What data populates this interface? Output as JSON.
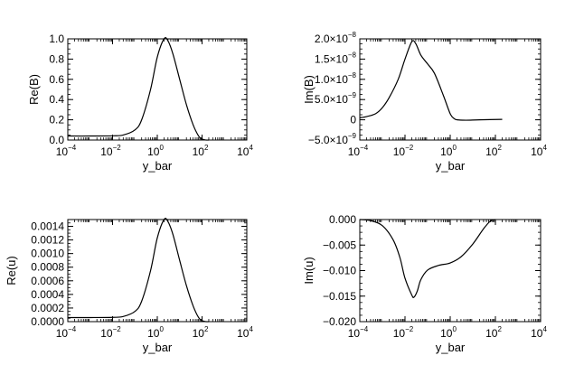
{
  "chart_data": [
    {
      "id": "reB",
      "type": "line",
      "xscale": "log",
      "xlim": [
        0.0001,
        10000
      ],
      "ylim": [
        0,
        1.0
      ],
      "xlabel": "y_bar",
      "ylabel": "Re(B)",
      "xticks": [
        {
          "value": 0.0001,
          "base": "10",
          "exp": "−4"
        },
        {
          "value": 0.01,
          "base": "10",
          "exp": "−2"
        },
        {
          "value": 1,
          "base": "10",
          "exp": "0"
        },
        {
          "value": 100,
          "base": "10",
          "exp": "2"
        },
        {
          "value": 10000,
          "base": "10",
          "exp": "4"
        }
      ],
      "yticks": [
        {
          "value": 0.0,
          "label": "0.0"
        },
        {
          "value": 0.2,
          "label": "0.2"
        },
        {
          "value": 0.4,
          "label": "0.4"
        },
        {
          "value": 0.6,
          "label": "0.6"
        },
        {
          "value": 0.8,
          "label": "0.8"
        },
        {
          "value": 1.0,
          "label": "1.0"
        }
      ],
      "series": [
        {
          "name": "Re(B)",
          "x": [
            0.0001,
            0.001,
            0.01,
            0.03,
            0.1,
            0.2,
            0.5,
            1,
            2,
            3,
            5,
            10,
            20,
            40,
            70,
            100,
            150,
            200
          ],
          "y": [
            0.04,
            0.04,
            0.042,
            0.05,
            0.1,
            0.2,
            0.5,
            0.82,
            1.0,
            0.98,
            0.85,
            0.6,
            0.35,
            0.15,
            0.04,
            0.01,
            0.0,
            0.0
          ]
        }
      ]
    },
    {
      "id": "imB",
      "type": "line",
      "xscale": "log",
      "xlim": [
        0.0001,
        10000
      ],
      "ylim": [
        -5e-09,
        2e-08
      ],
      "xlabel": "y_bar",
      "ylabel": "Im(B)",
      "xticks": [
        {
          "value": 0.0001,
          "base": "10",
          "exp": "−4"
        },
        {
          "value": 0.01,
          "base": "10",
          "exp": "−2"
        },
        {
          "value": 1,
          "base": "10",
          "exp": "0"
        },
        {
          "value": 100,
          "base": "10",
          "exp": "2"
        },
        {
          "value": 10000,
          "base": "10",
          "exp": "4"
        }
      ],
      "yticks": [
        {
          "value": -5e-09,
          "mant": "−5.0×10",
          "exp": "−9"
        },
        {
          "value": 0,
          "mant": "0",
          "exp": ""
        },
        {
          "value": 5e-09,
          "mant": "5.0×10",
          "exp": "−9"
        },
        {
          "value": 1e-08,
          "mant": "1.0×10",
          "exp": "−8"
        },
        {
          "value": 1.5e-08,
          "mant": "1.5×10",
          "exp": "−8"
        },
        {
          "value": 2e-08,
          "mant": "2.0×10",
          "exp": "−8"
        }
      ],
      "series": [
        {
          "name": "Im(B)",
          "x": [
            0.0001,
            0.0002,
            0.0005,
            0.001,
            0.002,
            0.005,
            0.01,
            0.02,
            0.03,
            0.05,
            0.1,
            0.2,
            0.5,
            1,
            1.5,
            2,
            5,
            20,
            200
          ],
          "y": [
            5e-10,
            8e-10,
            1.5e-09,
            3e-09,
            5.5e-09,
            1e-08,
            1.5e-08,
            1.93e-08,
            1.88e-08,
            1.6e-08,
            1.38e-08,
            1.15e-08,
            6e-09,
            1.5e-09,
            3e-10,
            0,
            -1e-10,
            0,
            1e-10
          ]
        }
      ]
    },
    {
      "id": "reU",
      "type": "line",
      "xscale": "log",
      "xlim": [
        0.0001,
        10000
      ],
      "ylim": [
        0,
        0.0015
      ],
      "xlabel": "y_bar",
      "ylabel": "Re(u)",
      "xticks": [
        {
          "value": 0.0001,
          "base": "10",
          "exp": "−4"
        },
        {
          "value": 0.01,
          "base": "10",
          "exp": "−2"
        },
        {
          "value": 1,
          "base": "10",
          "exp": "0"
        },
        {
          "value": 100,
          "base": "10",
          "exp": "2"
        },
        {
          "value": 10000,
          "base": "10",
          "exp": "4"
        }
      ],
      "yticks": [
        {
          "value": 0.0,
          "label": "0.0000"
        },
        {
          "value": 0.0002,
          "label": "0.0002"
        },
        {
          "value": 0.0004,
          "label": "0.0004"
        },
        {
          "value": 0.0006,
          "label": "0.0006"
        },
        {
          "value": 0.0008,
          "label": "0.0008"
        },
        {
          "value": 0.001,
          "label": "0.0010"
        },
        {
          "value": 0.0012,
          "label": "0.0012"
        },
        {
          "value": 0.0014,
          "label": "0.0014"
        }
      ],
      "series": [
        {
          "name": "Re(u)",
          "x": [
            0.0001,
            0.001,
            0.01,
            0.03,
            0.1,
            0.2,
            0.5,
            1,
            2,
            3,
            5,
            10,
            20,
            40,
            70,
            100,
            150,
            200
          ],
          "y": [
            6e-05,
            6e-05,
            6.3e-05,
            7.5e-05,
            0.00015,
            0.0003,
            0.00075,
            0.00123,
            0.0015,
            0.00147,
            0.00128,
            0.0009,
            0.00053,
            0.00023,
            6e-05,
            1.5e-05,
            0,
            0
          ]
        }
      ]
    },
    {
      "id": "imU",
      "type": "line",
      "xscale": "log",
      "xlim": [
        0.0001,
        10000
      ],
      "ylim": [
        -0.02,
        0.0
      ],
      "xlabel": "y_bar",
      "ylabel": "Im(u)",
      "xticks": [
        {
          "value": 0.0001,
          "base": "10",
          "exp": "−4"
        },
        {
          "value": 0.01,
          "base": "10",
          "exp": "−2"
        },
        {
          "value": 1,
          "base": "10",
          "exp": "0"
        },
        {
          "value": 100,
          "base": "10",
          "exp": "2"
        },
        {
          "value": 10000,
          "base": "10",
          "exp": "4"
        }
      ],
      "yticks": [
        {
          "value": -0.02,
          "label": "−0.020"
        },
        {
          "value": -0.015,
          "label": "−0.015"
        },
        {
          "value": -0.01,
          "label": "−0.010"
        },
        {
          "value": -0.005,
          "label": "−0.005"
        },
        {
          "value": 0.0,
          "label": "0.000"
        }
      ],
      "series": [
        {
          "name": "Im(u)",
          "x": [
            0.0001,
            0.0003,
            0.001,
            0.003,
            0.006,
            0.01,
            0.02,
            0.025,
            0.035,
            0.05,
            0.1,
            0.3,
            1,
            3,
            10,
            30,
            60,
            100
          ],
          "y": [
            0,
            -0.0002,
            -0.0012,
            -0.004,
            -0.0075,
            -0.0115,
            -0.0148,
            -0.0152,
            -0.014,
            -0.0118,
            -0.0099,
            -0.009,
            -0.0085,
            -0.0073,
            -0.0048,
            -0.0018,
            -0.0003,
            0
          ]
        }
      ]
    }
  ]
}
